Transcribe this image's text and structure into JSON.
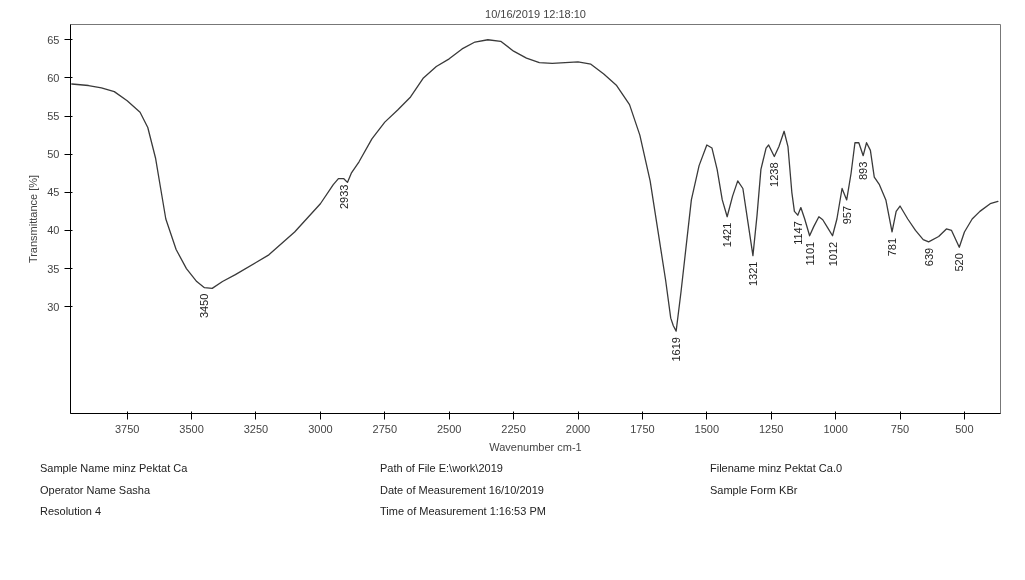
{
  "chart_data": {
    "type": "line",
    "title": "10/16/2019 12:18:10",
    "xlabel": "Wavenumber cm-1",
    "ylabel": "Transmittance [%]",
    "xlim": [
      3970,
      360
    ],
    "ylim": [
      16,
      67
    ],
    "xticks": [
      3750,
      3500,
      3250,
      3000,
      2750,
      2500,
      2250,
      2000,
      1750,
      1500,
      1250,
      1000,
      750,
      500
    ],
    "yticks": [
      30,
      35,
      40,
      45,
      50,
      55,
      60,
      65
    ],
    "grid": false,
    "marker": "none",
    "line_style": "solid",
    "x": [
      3965,
      3900,
      3850,
      3800,
      3750,
      3700,
      3670,
      3640,
      3620,
      3600,
      3560,
      3520,
      3480,
      3450,
      3420,
      3380,
      3330,
      3250,
      3200,
      3100,
      3000,
      2950,
      2930,
      2910,
      2895,
      2880,
      2850,
      2800,
      2750,
      2700,
      2650,
      2600,
      2550,
      2500,
      2450,
      2400,
      2350,
      2300,
      2250,
      2200,
      2150,
      2100,
      2050,
      2000,
      1950,
      1900,
      1850,
      1800,
      1760,
      1720,
      1690,
      1660,
      1640,
      1630,
      1619,
      1600,
      1580,
      1560,
      1530,
      1500,
      1480,
      1460,
      1440,
      1421,
      1400,
      1380,
      1360,
      1340,
      1321,
      1305,
      1290,
      1270,
      1260,
      1238,
      1220,
      1200,
      1185,
      1170,
      1160,
      1147,
      1135,
      1120,
      1101,
      1085,
      1065,
      1050,
      1030,
      1012,
      995,
      975,
      957,
      940,
      925,
      910,
      893,
      880,
      865,
      850,
      830,
      805,
      781,
      765,
      750,
      720,
      690,
      660,
      639,
      600,
      570,
      550,
      520,
      500,
      470,
      440,
      400,
      370
    ],
    "series": [
      {
        "color": "#3a3a3a",
        "values": [
          59.2,
          59.0,
          58.7,
          58.2,
          57.0,
          55.5,
          53.5,
          49.5,
          45.5,
          41.5,
          37.5,
          35.0,
          33.3,
          32.5,
          32.4,
          33.3,
          34.2,
          35.8,
          36.8,
          39.8,
          43.5,
          46.0,
          46.8,
          46.8,
          46.3,
          47.5,
          49.0,
          52.0,
          54.2,
          55.8,
          57.5,
          60.0,
          61.5,
          62.5,
          63.8,
          64.7,
          65.0,
          64.8,
          63.5,
          62.6,
          62.0,
          61.9,
          62.0,
          62.1,
          61.8,
          60.5,
          59.0,
          56.5,
          52.5,
          46.5,
          40.0,
          33.5,
          28.5,
          27.5,
          26.8,
          32.0,
          38.0,
          44.0,
          48.5,
          51.2,
          50.8,
          48.0,
          44.0,
          41.8,
          44.5,
          46.5,
          45.5,
          41.0,
          36.7,
          42.0,
          48.0,
          50.8,
          51.2,
          49.7,
          51.0,
          53.0,
          51.0,
          45.0,
          42.5,
          42.0,
          43.0,
          41.5,
          39.3,
          40.5,
          41.8,
          41.4,
          40.3,
          39.3,
          41.5,
          45.5,
          44.0,
          47.5,
          51.5,
          51.5,
          49.8,
          51.5,
          50.5,
          47.0,
          46.0,
          44.0,
          39.8,
          42.5,
          43.2,
          41.5,
          40.0,
          38.8,
          38.5,
          39.2,
          40.2,
          40.0,
          37.8,
          39.8,
          41.5,
          42.5,
          43.5,
          43.8
        ]
      }
    ],
    "annotations": [
      {
        "text": "3450",
        "x": 3450,
        "y": 32.5
      },
      {
        "text": "2933",
        "x": 2910,
        "y": 46.8
      },
      {
        "text": "1619",
        "x": 1619,
        "y": 26.8
      },
      {
        "text": "1421",
        "x": 1421,
        "y": 41.8
      },
      {
        "text": "1321",
        "x": 1321,
        "y": 36.7
      },
      {
        "text": "1238",
        "x": 1238,
        "y": 49.7
      },
      {
        "text": "1147",
        "x": 1147,
        "y": 42.0
      },
      {
        "text": "1101",
        "x": 1101,
        "y": 39.3
      },
      {
        "text": "1012",
        "x": 1012,
        "y": 39.3
      },
      {
        "text": "957",
        "x": 957,
        "y": 44.0
      },
      {
        "text": "893",
        "x": 893,
        "y": 49.8
      },
      {
        "text": "781",
        "x": 781,
        "y": 39.8
      },
      {
        "text": "639",
        "x": 639,
        "y": 38.5
      },
      {
        "text": "520",
        "x": 520,
        "y": 37.8
      },
      "Sample Name minz Pektat Ca",
      "Path of File E:\\work\\2019",
      "Filename minz Pektat Ca.0",
      "Operator Name Sasha",
      "Date of Measurement 16/10/2019",
      "Sample Form KBr",
      "Resolution 4",
      "Time of Measurement 1:16:53 PM"
    ]
  }
}
